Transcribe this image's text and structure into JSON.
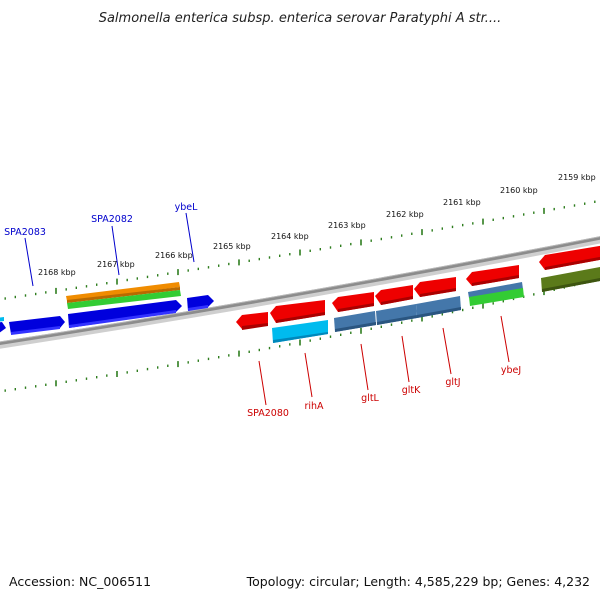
{
  "title": "Salmonella enterica subsp. enterica serovar Paratyphi A str....",
  "footer": {
    "accession": "Accession: NC_006511",
    "summary": "Topology: circular; Length: 4,585,229 bp; Genes: 4,232"
  },
  "colors": {
    "forward_label": "#0000cc",
    "reverse_label": "#cc0000",
    "tick": "#2e7d1e",
    "backbone": "#8c8c8c"
  },
  "kbp_ticks": [
    "2168 kbp",
    "2167 kbp",
    "2166 kbp",
    "2165 kbp",
    "2164 kbp",
    "2163 kbp",
    "2162 kbp",
    "2161 kbp",
    "2160 kbp",
    "2159 kbp"
  ],
  "forward_genes": [
    "SPA2083",
    "SPA2082",
    "ybeL"
  ],
  "reverse_genes": [
    "SPA2080",
    "rihA",
    "gltL",
    "gltK",
    "gltJ",
    "ybeJ"
  ]
}
